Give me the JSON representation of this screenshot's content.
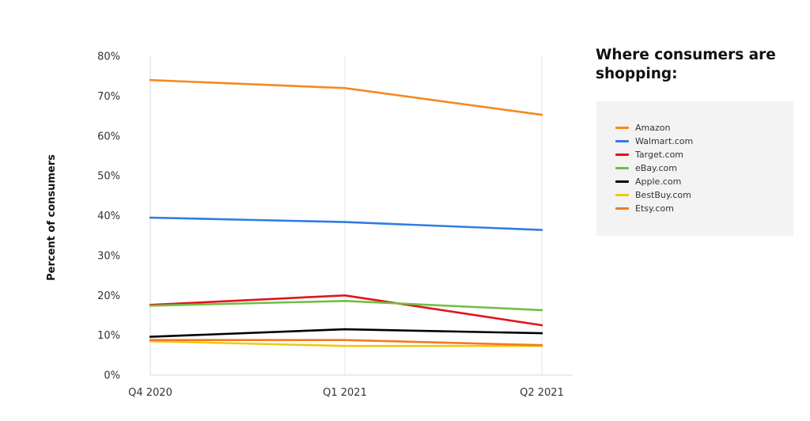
{
  "chart_data": {
    "type": "line",
    "x": [
      "Q4 2020",
      "Q1 2021",
      "Q2 2021"
    ],
    "ylabel": "Percent of consumers",
    "xlabel": "",
    "ylim": [
      0,
      80
    ],
    "yticks": [
      "0%",
      "10%",
      "20%",
      "30%",
      "40%",
      "50%",
      "60%",
      "70%",
      "80%"
    ],
    "grid": "vertical",
    "legend_title": "Where consumers are shopping:",
    "legend_position": "right",
    "series": [
      {
        "name": "Amazon",
        "color": "#f58a1f",
        "values": [
          74,
          72,
          65.3
        ]
      },
      {
        "name": "Walmart.com",
        "color": "#2f7de1",
        "values": [
          39.5,
          38.4,
          36.4
        ]
      },
      {
        "name": "Target.com",
        "color": "#e0141b",
        "values": [
          17.6,
          20,
          12.5
        ]
      },
      {
        "name": "eBay.com",
        "color": "#72be44",
        "values": [
          17.4,
          18.6,
          16.3
        ]
      },
      {
        "name": "Apple.com",
        "color": "#000000",
        "values": [
          9.6,
          11.5,
          10.5
        ]
      },
      {
        "name": "BestBuy.com",
        "color": "#f2c811",
        "values": [
          8.5,
          7.3,
          7.3
        ]
      },
      {
        "name": "Etsy.com",
        "color": "#f47a20",
        "values": [
          8.8,
          8.8,
          7.5
        ]
      }
    ]
  }
}
